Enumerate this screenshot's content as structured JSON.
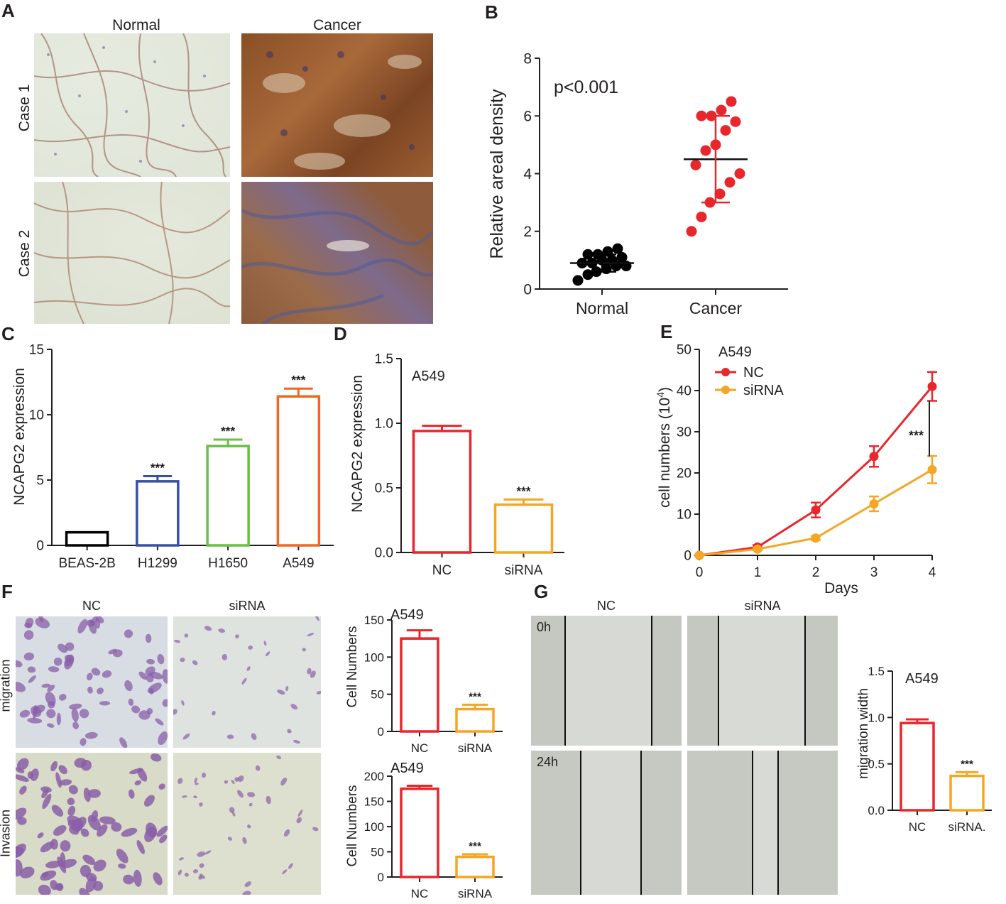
{
  "panel_labels": {
    "A": "A",
    "B": "B",
    "C": "C",
    "D": "D",
    "E": "E",
    "F": "F",
    "G": "G"
  },
  "panel_a": {
    "col_headers": [
      "Normal",
      "Cancer"
    ],
    "row_labels": [
      "Case 1",
      "Case 2"
    ]
  },
  "panel_f": {
    "col_headers": [
      "NC",
      "siRNA"
    ],
    "row_labels": [
      "migration",
      "Invasion"
    ]
  },
  "panel_g": {
    "col_headers": [
      "NC",
      "siRNA"
    ],
    "row_labels": [
      "0h",
      "24h"
    ]
  },
  "colors": {
    "red": "#e8262b",
    "orange": "#f5a623",
    "blue": "#3850a3",
    "green": "#6abf45",
    "dark_orange": "#f26522",
    "black": "#000000",
    "he_normal_bg": "#dfe6d8",
    "he_cancer": "#9a5a2e",
    "crystal_purple": "#8a5fa8",
    "scratch_bg": "#d6d8d2"
  },
  "chart_data": [
    {
      "id": "B",
      "type": "scatter",
      "categories": [
        "Normal",
        "Cancer"
      ],
      "ylabel": "Relative areal density",
      "ylim": [
        0,
        8
      ],
      "yticks": [
        0,
        2,
        4,
        6,
        8
      ],
      "annotation": "p<0.001",
      "series": [
        {
          "category": "Normal",
          "values": [
            0.3,
            0.5,
            0.6,
            0.7,
            0.8,
            0.8,
            0.9,
            0.9,
            1.0,
            1.0,
            1.1,
            1.2,
            1.2,
            1.3,
            1.4
          ],
          "mean": 0.9,
          "sd": 0.3
        },
        {
          "category": "Cancer",
          "values": [
            2.0,
            2.5,
            3.0,
            3.3,
            3.7,
            4.0,
            4.3,
            4.8,
            5.0,
            5.5,
            5.8,
            6.0,
            6.0,
            6.2,
            6.5
          ],
          "mean": 4.5,
          "sd": 1.5
        }
      ]
    },
    {
      "id": "C",
      "type": "bar",
      "categories": [
        "BEAS-2B",
        "H1299",
        "H1650",
        "A549"
      ],
      "values": [
        1.0,
        4.9,
        7.6,
        11.4
      ],
      "errors": [
        0,
        0.4,
        0.5,
        0.6
      ],
      "sig": [
        "",
        "***",
        "***",
        "***"
      ],
      "ylabel": "NCAPG2 expression",
      "ylim": [
        0,
        15
      ],
      "yticks": [
        0,
        5,
        10,
        15
      ]
    },
    {
      "id": "D",
      "type": "bar",
      "categories": [
        "NC",
        "siRNA"
      ],
      "values": [
        0.94,
        0.37
      ],
      "errors": [
        0.04,
        0.04
      ],
      "sig": [
        "",
        "***"
      ],
      "ylabel": "NCAPG2 expression",
      "annotation": "A549",
      "ylim": [
        0,
        1.5
      ],
      "yticks": [
        "0.0",
        "0.5",
        "1.0",
        "1.5"
      ]
    },
    {
      "id": "E",
      "type": "line",
      "x": [
        0,
        1,
        2,
        3,
        4
      ],
      "series": [
        {
          "name": "NC",
          "values": [
            0,
            2,
            11,
            24,
            41
          ],
          "errors": [
            0,
            0.5,
            1.8,
            2.5,
            3.5
          ]
        },
        {
          "name": "siRNA",
          "values": [
            0,
            1.5,
            4.2,
            12.5,
            20.8
          ],
          "errors": [
            0,
            0.3,
            0.5,
            1.8,
            3.3
          ]
        }
      ],
      "annotation": "A549",
      "sig": "***",
      "xlabel": "Days",
      "ylabel_pre": "cell numbers (10",
      "ylabel_sup": "4",
      "ylabel_post": ")",
      "ylim": [
        0,
        50
      ],
      "yticks": [
        0,
        10,
        20,
        30,
        40,
        50
      ],
      "legend_position": "top-left"
    },
    {
      "id": "F-migration",
      "type": "bar",
      "categories": [
        "NC",
        "siRNA"
      ],
      "values": [
        125,
        30
      ],
      "errors": [
        11,
        6
      ],
      "sig": [
        "",
        "***"
      ],
      "ylabel": "Cell Numbers",
      "annotation": "A549",
      "ylim": [
        0,
        150
      ],
      "yticks": [
        0,
        50,
        100,
        150
      ]
    },
    {
      "id": "F-invasion",
      "type": "bar",
      "categories": [
        "NC",
        "siRNA"
      ],
      "values": [
        175,
        40
      ],
      "errors": [
        6,
        5
      ],
      "sig": [
        "",
        "***"
      ],
      "ylabel": "Cell Numbers",
      "annotation": "A549",
      "ylim": [
        0,
        200
      ],
      "yticks": [
        0,
        50,
        100,
        150,
        200
      ]
    },
    {
      "id": "G",
      "type": "bar",
      "categories": [
        "NC",
        "siRNA."
      ],
      "values": [
        0.94,
        0.37
      ],
      "errors": [
        0.04,
        0.04
      ],
      "sig": [
        "",
        "***"
      ],
      "ylabel": "migration width",
      "annotation": "A549",
      "ylim": [
        0,
        1.5
      ],
      "yticks": [
        "0.0",
        "0.5",
        "1.0",
        "1.5"
      ]
    }
  ]
}
